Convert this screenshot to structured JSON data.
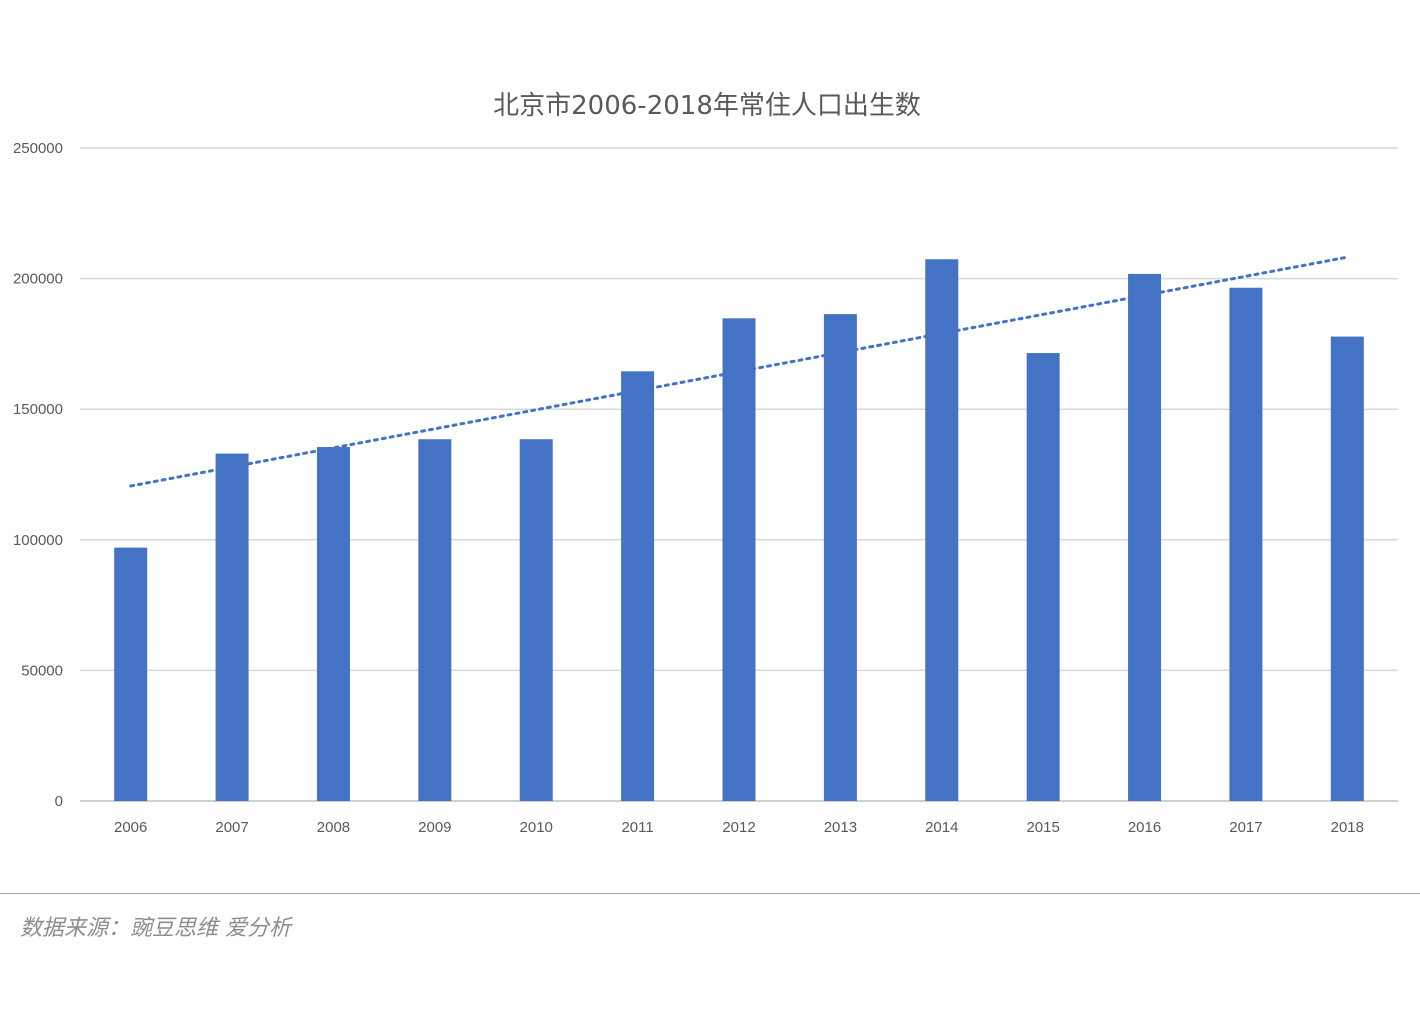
{
  "chart_data": {
    "type": "bar",
    "title": "北京市2006-2018年常住人口出生数",
    "xlabel": "",
    "ylabel": "",
    "categories": [
      "2006",
      "2007",
      "2008",
      "2009",
      "2010",
      "2011",
      "2012",
      "2013",
      "2014",
      "2015",
      "2016",
      "2017",
      "2018"
    ],
    "values": [
      97000,
      133000,
      135500,
      138500,
      138500,
      164500,
      184800,
      186400,
      207400,
      171500,
      201800,
      196500,
      177800
    ],
    "ylim": [
      0,
      250000
    ],
    "yticks": [
      0,
      50000,
      100000,
      150000,
      200000,
      250000
    ],
    "ytick_labels": [
      "0",
      "50000",
      "100000",
      "150000",
      "200000",
      "250000"
    ],
    "grid": true,
    "legend": "none",
    "trendline": {
      "type": "linear",
      "style": "dotted",
      "start_value": 120600,
      "end_value": 208200
    },
    "colors": {
      "bar": "#4472c4",
      "trend": "#4472c4",
      "grid": "#d9d9d9",
      "text": "#595959"
    }
  },
  "footer": {
    "source": "数据来源：豌豆思维 爱分析"
  }
}
